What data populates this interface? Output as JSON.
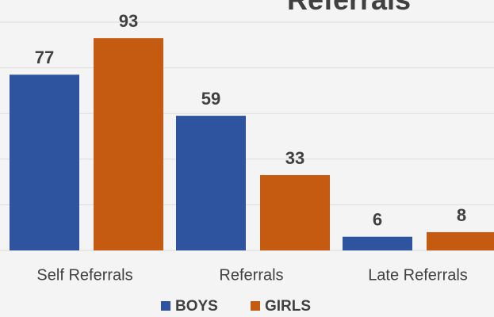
{
  "chart_data": {
    "type": "bar",
    "title": "Referrals",
    "categories": [
      "Self Referrals",
      "Referrals",
      "Late Referrals"
    ],
    "series": [
      {
        "name": "BOYS",
        "color": "#2e54a0",
        "values": [
          77,
          59,
          6
        ]
      },
      {
        "name": "GIRLS",
        "color": "#c55a11",
        "values": [
          93,
          33,
          8
        ]
      }
    ],
    "ylim": [
      0,
      100
    ],
    "yticks": [
      0,
      20,
      40,
      60,
      80,
      100
    ],
    "grid": true
  }
}
